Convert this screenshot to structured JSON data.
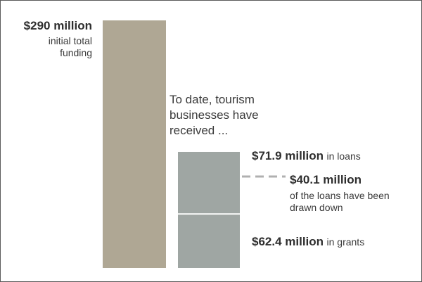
{
  "chart_data": {
    "type": "bar",
    "bars": [
      {
        "name": "funding",
        "value": 290,
        "value_label": "$290 million",
        "description": "initial total funding",
        "color": "#afa794"
      },
      {
        "name": "received",
        "intro": "To date, tourism businesses have received ...",
        "segments": [
          {
            "name": "grants",
            "value": 62.4,
            "value_label": "$62.4 million",
            "description": "in grants",
            "color": "#9fa6a3"
          },
          {
            "name": "loans",
            "value": 71.9,
            "value_label": "$71.9 million",
            "description": "in loans",
            "color": "#9fa6a3"
          }
        ]
      }
    ],
    "annotation": {
      "value": 40.1,
      "value_label": "$40.1 million",
      "description": "of the loans have been drawn down",
      "line_color": "#b0b0b0"
    },
    "units": "$ million",
    "ylim": [
      0,
      290
    ]
  }
}
